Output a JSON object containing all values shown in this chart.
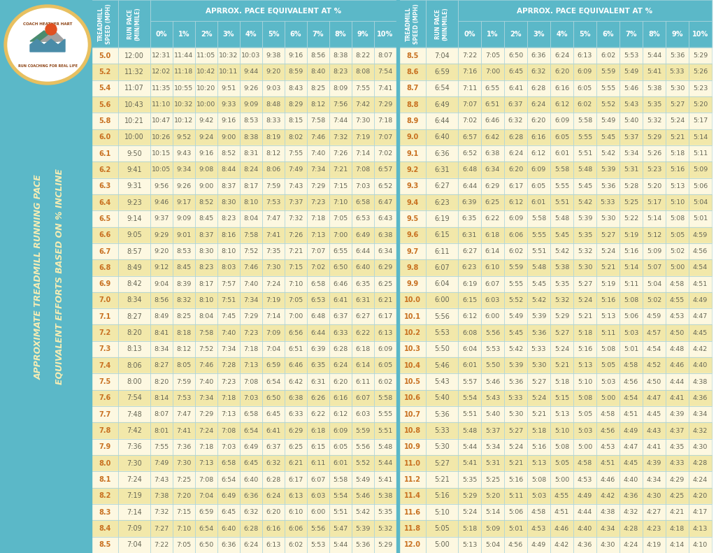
{
  "bg_color": "#5bb8c8",
  "table_bg_even": "#fdf8e1",
  "table_bg_odd": "#f0e6b0",
  "header_bg": "#5bb8c8",
  "header_text_color": "#ffffff",
  "cell_text_color": "#666655",
  "mph_text_color": "#c87020",
  "pace_text_color": "#666655",
  "border_color": "#aad4dc",
  "sidebar_text_color": "#f5edb5",
  "incline_header": "APRROX. PACE EQUIVALENT AT %",
  "col_headers": [
    "TREADMILL\nSPEED (MPH)",
    "RUN PACE\n(MIN/MILE)",
    "0%",
    "1%",
    "2%",
    "3%",
    "4%",
    "5%",
    "6%",
    "7%",
    "8%",
    "9%",
    "10%"
  ],
  "left_table": [
    [
      "5.0",
      "12:00",
      "12:31",
      "11:44",
      "11:05",
      "10:32",
      "10:03",
      "9:38",
      "9:16",
      "8:56",
      "8:38",
      "8:22",
      "8:07"
    ],
    [
      "5.2",
      "11:32",
      "12:02",
      "11:18",
      "10:42",
      "10:11",
      "9:44",
      "9:20",
      "8:59",
      "8:40",
      "8:23",
      "8:08",
      "7:54"
    ],
    [
      "5.4",
      "11:07",
      "11:35",
      "10:55",
      "10:20",
      "9:51",
      "9:26",
      "9:03",
      "8:43",
      "8:25",
      "8:09",
      "7:55",
      "7:41"
    ],
    [
      "5.6",
      "10:43",
      "11:10",
      "10:32",
      "10:00",
      "9:33",
      "9:09",
      "8:48",
      "8:29",
      "8:12",
      "7:56",
      "7:42",
      "7:29"
    ],
    [
      "5.8",
      "10:21",
      "10:47",
      "10:12",
      "9:42",
      "9:16",
      "8:53",
      "8:33",
      "8:15",
      "7:58",
      "7:44",
      "7:30",
      "7:18"
    ],
    [
      "6.0",
      "10:00",
      "10:26",
      "9:52",
      "9:24",
      "9:00",
      "8:38",
      "8:19",
      "8:02",
      "7:46",
      "7:32",
      "7:19",
      "7:07"
    ],
    [
      "6.1",
      "9:50",
      "10:15",
      "9:43",
      "9:16",
      "8:52",
      "8:31",
      "8:12",
      "7:55",
      "7:40",
      "7:26",
      "7:14",
      "7:02"
    ],
    [
      "6.2",
      "9:41",
      "10:05",
      "9:34",
      "9:08",
      "8:44",
      "8:24",
      "8:06",
      "7:49",
      "7:34",
      "7:21",
      "7:08",
      "6:57"
    ],
    [
      "6.3",
      "9:31",
      "9:56",
      "9:26",
      "9:00",
      "8:37",
      "8:17",
      "7:59",
      "7:43",
      "7:29",
      "7:15",
      "7:03",
      "6:52"
    ],
    [
      "6.4",
      "9:23",
      "9:46",
      "9:17",
      "8:52",
      "8:30",
      "8:10",
      "7:53",
      "7:37",
      "7:23",
      "7:10",
      "6:58",
      "6:47"
    ],
    [
      "6.5",
      "9:14",
      "9:37",
      "9:09",
      "8:45",
      "8:23",
      "8:04",
      "7:47",
      "7:32",
      "7:18",
      "7:05",
      "6:53",
      "6:43"
    ],
    [
      "6.6",
      "9:05",
      "9:29",
      "9:01",
      "8:37",
      "8:16",
      "7:58",
      "7:41",
      "7:26",
      "7:13",
      "7:00",
      "6:49",
      "6:38"
    ],
    [
      "6.7",
      "8:57",
      "9:20",
      "8:53",
      "8:30",
      "8:10",
      "7:52",
      "7:35",
      "7:21",
      "7:07",
      "6:55",
      "6:44",
      "6:34"
    ],
    [
      "6.8",
      "8:49",
      "9:12",
      "8:45",
      "8:23",
      "8:03",
      "7:46",
      "7:30",
      "7:15",
      "7:02",
      "6:50",
      "6:40",
      "6:29"
    ],
    [
      "6.9",
      "8:42",
      "9:04",
      "8:39",
      "8:17",
      "7:57",
      "7:40",
      "7:24",
      "7:10",
      "6:58",
      "6:46",
      "6:35",
      "6:25"
    ],
    [
      "7.0",
      "8:34",
      "8:56",
      "8:32",
      "8:10",
      "7:51",
      "7:34",
      "7:19",
      "7:05",
      "6:53",
      "6:41",
      "6:31",
      "6:21"
    ],
    [
      "7.1",
      "8:27",
      "8:49",
      "8:25",
      "8:04",
      "7:45",
      "7:29",
      "7:14",
      "7:00",
      "6:48",
      "6:37",
      "6:27",
      "6:17"
    ],
    [
      "7.2",
      "8:20",
      "8:41",
      "8:18",
      "7:58",
      "7:40",
      "7:23",
      "7:09",
      "6:56",
      "6:44",
      "6:33",
      "6:22",
      "6:13"
    ],
    [
      "7.3",
      "8:13",
      "8:34",
      "8:12",
      "7:52",
      "7:34",
      "7:18",
      "7:04",
      "6:51",
      "6:39",
      "6:28",
      "6:18",
      "6:09"
    ],
    [
      "7.4",
      "8:06",
      "8:27",
      "8:05",
      "7:46",
      "7:28",
      "7:13",
      "6:59",
      "6:46",
      "6:35",
      "6:24",
      "6:14",
      "6:05"
    ],
    [
      "7.5",
      "8:00",
      "8:20",
      "7:59",
      "7:40",
      "7:23",
      "7:08",
      "6:54",
      "6:42",
      "6:31",
      "6:20",
      "6:11",
      "6:02"
    ],
    [
      "7.6",
      "7:54",
      "8:14",
      "7:53",
      "7:34",
      "7:18",
      "7:03",
      "6:50",
      "6:38",
      "6:26",
      "6:16",
      "6:07",
      "5:58"
    ],
    [
      "7.7",
      "7:48",
      "8:07",
      "7:47",
      "7:29",
      "7:13",
      "6:58",
      "6:45",
      "6:33",
      "6:22",
      "6:12",
      "6:03",
      "5:55"
    ],
    [
      "7.8",
      "7:42",
      "8:01",
      "7:41",
      "7:24",
      "7:08",
      "6:54",
      "6:41",
      "6:29",
      "6:18",
      "6:09",
      "5:59",
      "5:51"
    ],
    [
      "7.9",
      "7:36",
      "7:55",
      "7:36",
      "7:18",
      "7:03",
      "6:49",
      "6:37",
      "6:25",
      "6:15",
      "6:05",
      "5:56",
      "5:48"
    ],
    [
      "8.0",
      "7:30",
      "7:49",
      "7:30",
      "7:13",
      "6:58",
      "6:45",
      "6:32",
      "6:21",
      "6:11",
      "6:01",
      "5:52",
      "5:44"
    ],
    [
      "8.1",
      "7:24",
      "7:43",
      "7:25",
      "7:08",
      "6:54",
      "6:40",
      "6:28",
      "6:17",
      "6:07",
      "5:58",
      "5:49",
      "5:41"
    ],
    [
      "8.2",
      "7:19",
      "7:38",
      "7:20",
      "7:04",
      "6:49",
      "6:36",
      "6:24",
      "6:13",
      "6:03",
      "5:54",
      "5:46",
      "5:38"
    ],
    [
      "8.3",
      "7:14",
      "7:32",
      "7:15",
      "6:59",
      "6:45",
      "6:32",
      "6:20",
      "6:10",
      "6:00",
      "5:51",
      "5:42",
      "5:35"
    ],
    [
      "8.4",
      "7:09",
      "7:27",
      "7:10",
      "6:54",
      "6:40",
      "6:28",
      "6:16",
      "6:06",
      "5:56",
      "5:47",
      "5:39",
      "5:32"
    ],
    [
      "8.5",
      "7:04",
      "7:22",
      "7:05",
      "6:50",
      "6:36",
      "6:24",
      "6:13",
      "6:02",
      "5:53",
      "5:44",
      "5:36",
      "5:29"
    ]
  ],
  "right_table": [
    [
      "8.5",
      "7:04",
      "7:22",
      "7:05",
      "6:50",
      "6:36",
      "6:24",
      "6:13",
      "6:02",
      "5:53",
      "5:44",
      "5:36",
      "5:29"
    ],
    [
      "8.6",
      "6:59",
      "7:16",
      "7:00",
      "6:45",
      "6:32",
      "6:20",
      "6:09",
      "5:59",
      "5:49",
      "5:41",
      "5:33",
      "5:26"
    ],
    [
      "8.7",
      "6:54",
      "7:11",
      "6:55",
      "6:41",
      "6:28",
      "6:16",
      "6:05",
      "5:55",
      "5:46",
      "5:38",
      "5:30",
      "5:23"
    ],
    [
      "8.8",
      "6:49",
      "7:07",
      "6:51",
      "6:37",
      "6:24",
      "6:12",
      "6:02",
      "5:52",
      "5:43",
      "5:35",
      "5:27",
      "5:20"
    ],
    [
      "8.9",
      "6:44",
      "7:02",
      "6:46",
      "6:32",
      "6:20",
      "6:09",
      "5:58",
      "5:49",
      "5:40",
      "5:32",
      "5:24",
      "5:17"
    ],
    [
      "9.0",
      "6:40",
      "6:57",
      "6:42",
      "6:28",
      "6:16",
      "6:05",
      "5:55",
      "5:45",
      "5:37",
      "5:29",
      "5:21",
      "5:14"
    ],
    [
      "9.1",
      "6:36",
      "6:52",
      "6:38",
      "6:24",
      "6:12",
      "6:01",
      "5:51",
      "5:42",
      "5:34",
      "5:26",
      "5:18",
      "5:11"
    ],
    [
      "9.2",
      "6:31",
      "6:48",
      "6:34",
      "6:20",
      "6:09",
      "5:58",
      "5:48",
      "5:39",
      "5:31",
      "5:23",
      "5:16",
      "5:09"
    ],
    [
      "9.3",
      "6:27",
      "6:44",
      "6:29",
      "6:17",
      "6:05",
      "5:55",
      "5:45",
      "5:36",
      "5:28",
      "5:20",
      "5:13",
      "5:06"
    ],
    [
      "9.4",
      "6:23",
      "6:39",
      "6:25",
      "6:12",
      "6:01",
      "5:51",
      "5:42",
      "5:33",
      "5:25",
      "5:17",
      "5:10",
      "5:04"
    ],
    [
      "9.5",
      "6:19",
      "6:35",
      "6:22",
      "6:09",
      "5:58",
      "5:48",
      "5:39",
      "5:30",
      "5:22",
      "5:14",
      "5:08",
      "5:01"
    ],
    [
      "9.6",
      "6:15",
      "6:31",
      "6:18",
      "6:06",
      "5:55",
      "5:45",
      "5:35",
      "5:27",
      "5:19",
      "5:12",
      "5:05",
      "4:59"
    ],
    [
      "9.7",
      "6:11",
      "6:27",
      "6:14",
      "6:02",
      "5:51",
      "5:42",
      "5:32",
      "5:24",
      "5:16",
      "5:09",
      "5:02",
      "4:56"
    ],
    [
      "9.8",
      "6:07",
      "6:23",
      "6:10",
      "5:59",
      "5:48",
      "5:38",
      "5:30",
      "5:21",
      "5:14",
      "5:07",
      "5:00",
      "4:54"
    ],
    [
      "9.9",
      "6:04",
      "6:19",
      "6:07",
      "5:55",
      "5:45",
      "5:35",
      "5:27",
      "5:19",
      "5:11",
      "5:04",
      "4:58",
      "4:51"
    ],
    [
      "10.0",
      "6:00",
      "6:15",
      "6:03",
      "5:52",
      "5:42",
      "5:32",
      "5:24",
      "5:16",
      "5:08",
      "5:02",
      "4:55",
      "4:49"
    ],
    [
      "10.1",
      "5:56",
      "6:12",
      "6:00",
      "5:49",
      "5:39",
      "5:29",
      "5:21",
      "5:13",
      "5:06",
      "4:59",
      "4:53",
      "4:47"
    ],
    [
      "10.2",
      "5:53",
      "6:08",
      "5:56",
      "5:45",
      "5:36",
      "5:27",
      "5:18",
      "5:11",
      "5:03",
      "4:57",
      "4:50",
      "4:45"
    ],
    [
      "10.3",
      "5:50",
      "6:04",
      "5:53",
      "5:42",
      "5:33",
      "5:24",
      "5:16",
      "5:08",
      "5:01",
      "4:54",
      "4:48",
      "4:42"
    ],
    [
      "10.4",
      "5:46",
      "6:01",
      "5:50",
      "5:39",
      "5:30",
      "5:21",
      "5:13",
      "5:05",
      "4:58",
      "4:52",
      "4:46",
      "4:40"
    ],
    [
      "10.5",
      "5:43",
      "5:57",
      "5:46",
      "5:36",
      "5:27",
      "5:18",
      "5:10",
      "5:03",
      "4:56",
      "4:50",
      "4:44",
      "4:38"
    ],
    [
      "10.6",
      "5:40",
      "5:54",
      "5:43",
      "5:33",
      "5:24",
      "5:15",
      "5:08",
      "5:00",
      "4:54",
      "4:47",
      "4:41",
      "4:36"
    ],
    [
      "10.7",
      "5:36",
      "5:51",
      "5:40",
      "5:30",
      "5:21",
      "5:13",
      "5:05",
      "4:58",
      "4:51",
      "4:45",
      "4:39",
      "4:34"
    ],
    [
      "10.8",
      "5:33",
      "5:48",
      "5:37",
      "5:27",
      "5:18",
      "5:10",
      "5:03",
      "4:56",
      "4:49",
      "4:43",
      "4:37",
      "4:32"
    ],
    [
      "10.9",
      "5:30",
      "5:44",
      "5:34",
      "5:24",
      "5:16",
      "5:08",
      "5:00",
      "4:53",
      "4:47",
      "4:41",
      "4:35",
      "4:30"
    ],
    [
      "11.0",
      "5:27",
      "5:41",
      "5:31",
      "5:21",
      "5:13",
      "5:05",
      "4:58",
      "4:51",
      "4:45",
      "4:39",
      "4:33",
      "4:28"
    ],
    [
      "11.2",
      "5:21",
      "5:35",
      "5:25",
      "5:16",
      "5:08",
      "5:00",
      "4:53",
      "4:46",
      "4:40",
      "4:34",
      "4:29",
      "4:24"
    ],
    [
      "11.4",
      "5:16",
      "5:29",
      "5:20",
      "5:11",
      "5:03",
      "4:55",
      "4:49",
      "4:42",
      "4:36",
      "4:30",
      "4:25",
      "4:20"
    ],
    [
      "11.6",
      "5:10",
      "5:24",
      "5:14",
      "5:06",
      "4:58",
      "4:51",
      "4:44",
      "4:38",
      "4:32",
      "4:27",
      "4:21",
      "4:17"
    ],
    [
      "11.8",
      "5:05",
      "5:18",
      "5:09",
      "5:01",
      "4:53",
      "4:46",
      "4:40",
      "4:34",
      "4:28",
      "4:23",
      "4:18",
      "4:13"
    ],
    [
      "12.0",
      "5:00",
      "5:13",
      "5:04",
      "4:56",
      "4:49",
      "4:42",
      "4:36",
      "4:30",
      "4:24",
      "4:19",
      "4:14",
      "4:10"
    ]
  ]
}
